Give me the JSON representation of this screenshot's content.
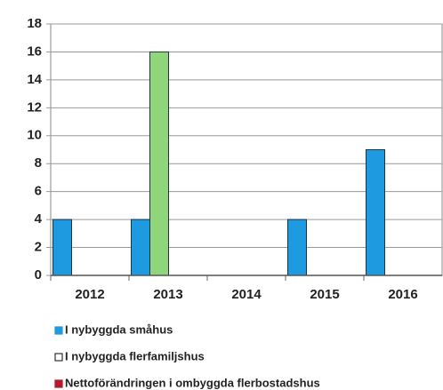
{
  "chart_data": {
    "type": "bar",
    "categories": [
      "2012",
      "2013",
      "2014",
      "2015",
      "2016"
    ],
    "series": [
      {
        "name": "I nybyggda småhus",
        "color": "#1e9be0",
        "values": [
          4,
          4,
          0,
          4,
          9
        ]
      },
      {
        "name": "I nybyggda flerfamiljshus",
        "color": "#8fd67a",
        "values": [
          0,
          16,
          0,
          0,
          0
        ]
      },
      {
        "name": "Nettoförändringen i ombyggda flerbostadshus",
        "color": "#b5192e",
        "values": [
          0,
          0,
          0,
          0,
          0
        ]
      }
    ],
    "ylim": [
      0,
      18
    ],
    "yticks": [
      0,
      2,
      4,
      6,
      8,
      10,
      12,
      14,
      16,
      18
    ],
    "grid": true,
    "legend": "bottom"
  }
}
